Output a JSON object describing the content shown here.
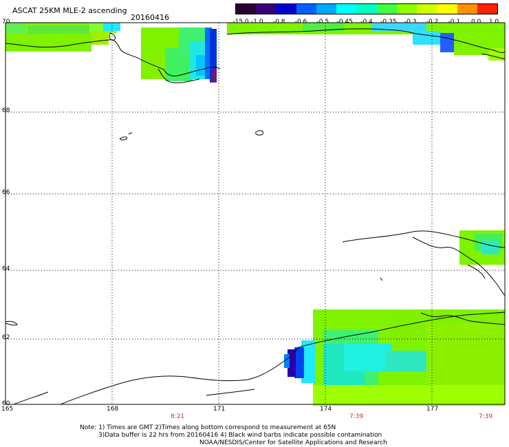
{
  "header": {
    "title": "ASCAT 25KM MLE-2 ascending",
    "date": "20160416"
  },
  "colorbar": {
    "labels": [
      "-15.0",
      "-1.0",
      "-0.8",
      "-0.6",
      "-0.5",
      "-0.45",
      "-0.4",
      "-0.35",
      "-0.3",
      "-0.2",
      "-0.1",
      "0.0",
      "1.0"
    ],
    "colors": [
      "#2a0033",
      "#3a0078",
      "#0000cc",
      "#0060ff",
      "#00a8ff",
      "#00ffff",
      "#00ffc0",
      "#40ff40",
      "#90ff00",
      "#d0ff00",
      "#ffff00",
      "#ff9000",
      "#ff2000"
    ]
  },
  "axes": {
    "lat_labels": [
      "70",
      "68",
      "66",
      "64",
      "62",
      "60"
    ],
    "lon_labels": [
      "165",
      "168",
      "171",
      "174",
      "177"
    ],
    "time_labels": [
      "8:21",
      "7:39",
      "7:39"
    ]
  },
  "footer": {
    "line1": "Note: 1) Times are GMT 2)Times along bottom correspond to measurement at 65N",
    "line2": "3)Data buffer is 22 hrs from 20160416 4) Black wind barbs indicate possible contamination",
    "line3": "NOAA/NESDIS/Center for Satellite Applications and Research"
  }
}
